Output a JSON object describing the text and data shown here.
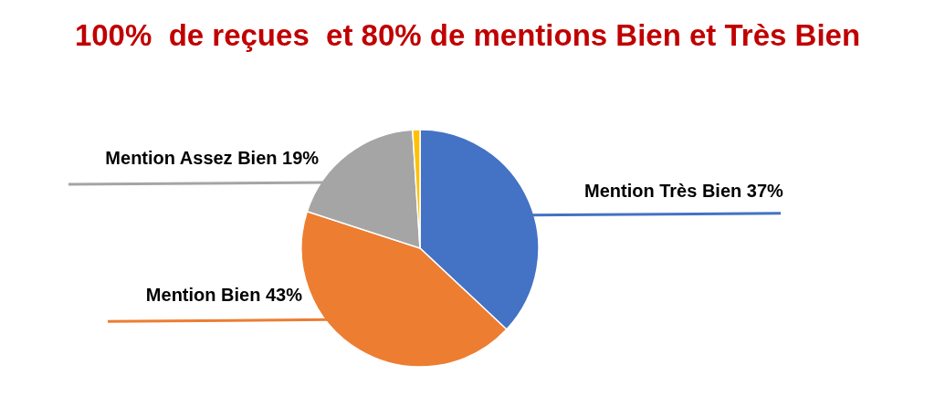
{
  "chart_data": {
    "type": "pie",
    "title": "100%  de reçues  et 80% de mentions Bien et Très Bien",
    "categories": [
      "Mention Très Bien",
      "Mention Bien",
      "Mention Assez Bien",
      null
    ],
    "values": [
      37,
      43,
      19,
      1
    ],
    "value_labels": [
      "37%",
      "43%",
      "19%",
      null
    ],
    "colors": [
      "#4472c4",
      "#ed7d31",
      "#a5a5a5",
      "#ffc000"
    ]
  }
}
